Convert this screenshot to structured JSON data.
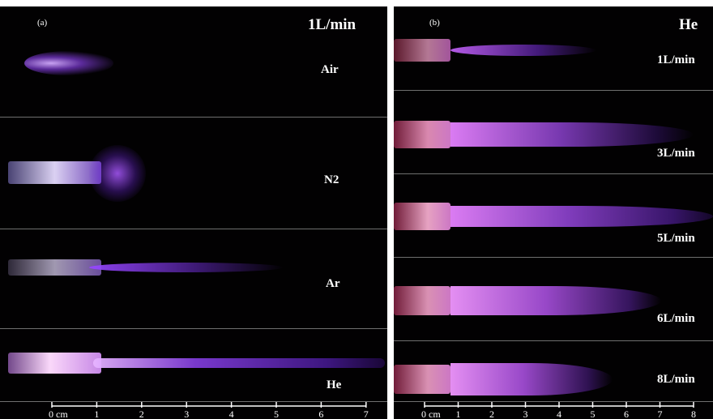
{
  "panel_a": {
    "label": "(a)",
    "title": "1L/min",
    "rows": [
      {
        "gas": "Air"
      },
      {
        "gas": "N2"
      },
      {
        "gas": "Ar"
      },
      {
        "gas": "He"
      }
    ],
    "scale": {
      "unit_label": "0 cm",
      "ticks": [
        "1",
        "2",
        "3",
        "4",
        "5",
        "6",
        "7"
      ]
    }
  },
  "panel_b": {
    "label": "(b)",
    "title": "He",
    "rows": [
      {
        "flow": "1L/min"
      },
      {
        "flow": "3L/min"
      },
      {
        "flow": "5L/min"
      },
      {
        "flow": "6L/min"
      },
      {
        "flow": "8L/min"
      }
    ],
    "scale": {
      "unit_label": "0 cm",
      "ticks": [
        "1",
        "2",
        "3",
        "4",
        "5",
        "6",
        "7",
        "8"
      ]
    }
  },
  "colors": {
    "background": "#020102",
    "plasma_violet": "#9b4dff",
    "plasma_pink": "#ff7ad8",
    "divider": "#6f6f6f"
  }
}
